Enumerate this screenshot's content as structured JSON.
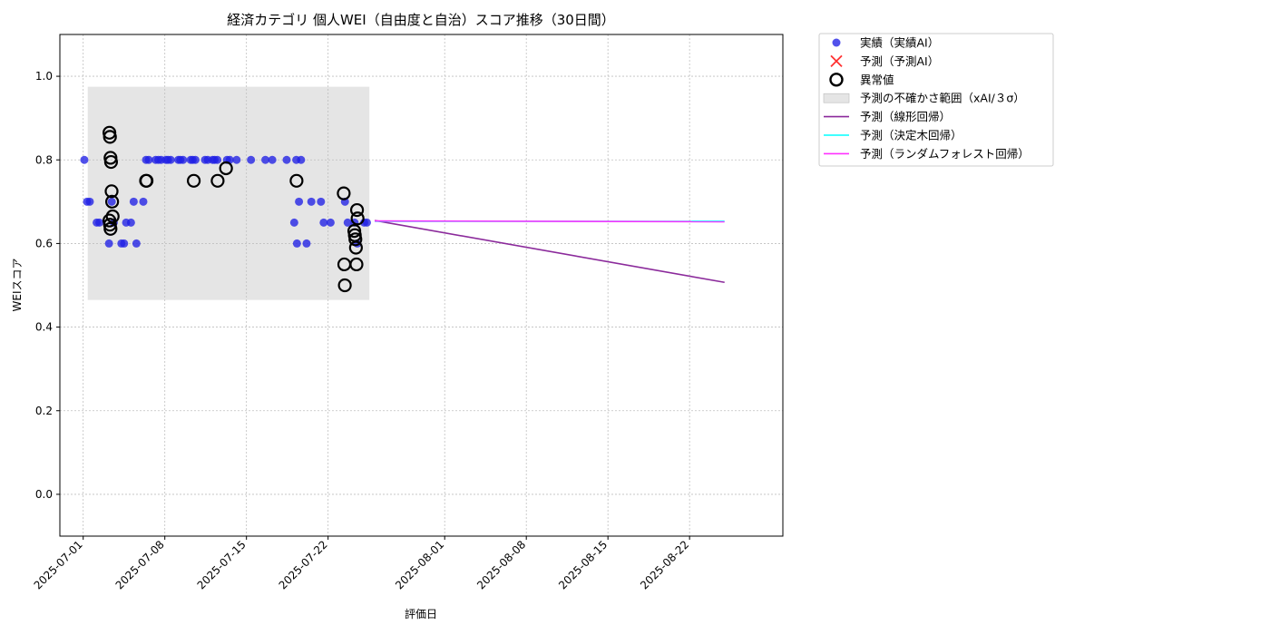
{
  "chart_data": {
    "type": "scatter",
    "title": "経済カテゴリ 個人WEI（自由度と自治）スコア推移（30日間）",
    "xlabel": "評価日",
    "ylabel": "WEIスコア",
    "ylim": [
      -0.1,
      1.1
    ],
    "xlim": [
      "2025-06-29",
      "2025-08-30"
    ],
    "x_ticks": [
      "2025-07-01",
      "2025-07-08",
      "2025-07-15",
      "2025-07-22",
      "2025-08-01",
      "2025-08-08",
      "2025-08-15",
      "2025-08-22"
    ],
    "y_ticks": [
      0.0,
      0.2,
      0.4,
      0.6,
      0.8,
      1.0
    ],
    "grid": true,
    "legend_position": "outside-top-right",
    "uncertainty_band": {
      "name": "予測の不確かさ範囲（xAI/３σ）",
      "x": [
        "2025-07-01",
        "2025-07-25"
      ],
      "y": [
        0.465,
        0.975
      ],
      "color": "#d3d3d3"
    },
    "series": [
      {
        "name": "実績（実績AI）",
        "kind": "scatter",
        "color": "#2020e6",
        "points": [
          [
            "2025-07-01",
            0.8
          ],
          [
            "2025-07-01",
            0.7
          ],
          [
            "2025-07-01",
            0.7
          ],
          [
            "2025-07-02",
            0.65
          ],
          [
            "2025-07-02",
            0.65
          ],
          [
            "2025-07-03",
            0.65
          ],
          [
            "2025-07-03",
            0.6
          ],
          [
            "2025-07-03",
            0.7
          ],
          [
            "2025-07-04",
            0.65
          ],
          [
            "2025-07-04",
            0.6
          ],
          [
            "2025-07-04",
            0.6
          ],
          [
            "2025-07-05",
            0.65
          ],
          [
            "2025-07-05",
            0.7
          ],
          [
            "2025-07-05",
            0.6
          ],
          [
            "2025-07-06",
            0.7
          ],
          [
            "2025-07-06",
            0.8
          ],
          [
            "2025-07-06",
            0.8
          ],
          [
            "2025-07-07",
            0.8
          ],
          [
            "2025-07-07",
            0.8
          ],
          [
            "2025-07-07",
            0.8
          ],
          [
            "2025-07-08",
            0.8
          ],
          [
            "2025-07-08",
            0.8
          ],
          [
            "2025-07-08",
            0.8
          ],
          [
            "2025-07-09",
            0.8
          ],
          [
            "2025-07-09",
            0.8
          ],
          [
            "2025-07-09",
            0.8
          ],
          [
            "2025-07-10",
            0.8
          ],
          [
            "2025-07-10",
            0.8
          ],
          [
            "2025-07-10",
            0.8
          ],
          [
            "2025-07-11",
            0.8
          ],
          [
            "2025-07-11",
            0.8
          ],
          [
            "2025-07-12",
            0.8
          ],
          [
            "2025-07-12",
            0.8
          ],
          [
            "2025-07-12",
            0.8
          ],
          [
            "2025-07-13",
            0.8
          ],
          [
            "2025-07-13",
            0.8
          ],
          [
            "2025-07-14",
            0.8
          ],
          [
            "2025-07-15",
            0.8
          ],
          [
            "2025-07-16",
            0.8
          ],
          [
            "2025-07-17",
            0.8
          ],
          [
            "2025-07-18",
            0.8
          ],
          [
            "2025-07-19",
            0.8
          ],
          [
            "2025-07-19",
            0.8
          ],
          [
            "2025-07-19",
            0.7
          ],
          [
            "2025-07-19",
            0.65
          ],
          [
            "2025-07-19",
            0.6
          ],
          [
            "2025-07-20",
            0.7
          ],
          [
            "2025-07-20",
            0.6
          ],
          [
            "2025-07-21",
            0.7
          ],
          [
            "2025-07-21",
            0.65
          ],
          [
            "2025-07-22",
            0.65
          ],
          [
            "2025-07-23",
            0.7
          ],
          [
            "2025-07-23",
            0.65
          ],
          [
            "2025-07-24",
            0.65
          ],
          [
            "2025-07-24",
            0.6
          ],
          [
            "2025-07-25",
            0.65
          ],
          [
            "2025-07-25",
            0.65
          ]
        ]
      },
      {
        "name": "予測（予測AI）",
        "kind": "scatter-x",
        "color": "#ff3030",
        "points": []
      },
      {
        "name": "異常値",
        "kind": "ring",
        "color": "#000000",
        "points": [
          [
            "2025-07-03",
            0.865
          ],
          [
            "2025-07-03",
            0.855
          ],
          [
            "2025-07-03",
            0.805
          ],
          [
            "2025-07-03",
            0.795
          ],
          [
            "2025-07-03",
            0.725
          ],
          [
            "2025-07-03",
            0.7
          ],
          [
            "2025-07-03",
            0.665
          ],
          [
            "2025-07-03",
            0.655
          ],
          [
            "2025-07-03",
            0.645
          ],
          [
            "2025-07-03",
            0.635
          ],
          [
            "2025-07-06",
            0.75
          ],
          [
            "2025-07-06",
            0.75
          ],
          [
            "2025-07-10",
            0.75
          ],
          [
            "2025-07-12",
            0.75
          ],
          [
            "2025-07-13",
            0.78
          ],
          [
            "2025-07-19",
            0.75
          ],
          [
            "2025-07-23",
            0.72
          ],
          [
            "2025-07-23",
            0.55
          ],
          [
            "2025-07-23",
            0.5
          ],
          [
            "2025-07-24",
            0.68
          ],
          [
            "2025-07-24",
            0.66
          ],
          [
            "2025-07-24",
            0.63
          ],
          [
            "2025-07-24",
            0.62
          ],
          [
            "2025-07-24",
            0.61
          ],
          [
            "2025-07-24",
            0.59
          ],
          [
            "2025-07-24",
            0.55
          ]
        ]
      },
      {
        "name": "予測（線形回帰）",
        "kind": "line",
        "color": "#8b2a9b",
        "points": [
          [
            "2025-07-26",
            0.655
          ],
          [
            "2025-08-25",
            0.507
          ]
        ]
      },
      {
        "name": "予測（決定木回帰）",
        "kind": "line",
        "color": "#00ffff",
        "points": [
          [
            "2025-07-26",
            0.653
          ],
          [
            "2025-08-25",
            0.653
          ]
        ]
      },
      {
        "name": "予測（ランダムフォレスト回帰）",
        "kind": "line",
        "color": "#ff30ff",
        "points": [
          [
            "2025-07-26",
            0.654
          ],
          [
            "2025-08-25",
            0.652
          ]
        ]
      }
    ]
  }
}
